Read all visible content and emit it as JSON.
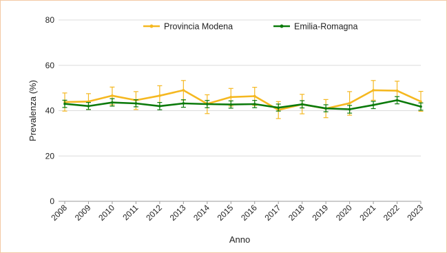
{
  "chart_data": {
    "type": "line",
    "title": "",
    "xlabel": "Anno",
    "ylabel": "Prevalenza (%)",
    "ylim": [
      0,
      80
    ],
    "yticks": [
      0,
      20,
      40,
      60,
      80
    ],
    "grid": "horizontal",
    "legend_position": "top",
    "x": [
      "2008",
      "2009",
      "2010",
      "2011",
      "2012",
      "2013",
      "2014",
      "2015",
      "2016",
      "2017",
      "2018",
      "2019",
      "2020",
      "2021",
      "2022",
      "2023"
    ],
    "series": [
      {
        "name": "Provincia Modena",
        "color": "#f5b820",
        "values": [
          43.8,
          44.0,
          46.6,
          44.6,
          46.6,
          49.0,
          43.0,
          46.0,
          46.4,
          40.3,
          42.8,
          40.9,
          43.3,
          49.0,
          48.8,
          44.0
        ],
        "error_low": [
          39.8,
          40.5,
          42.6,
          40.5,
          42.2,
          44.7,
          38.7,
          42.0,
          42.3,
          36.5,
          38.6,
          36.9,
          38.0,
          44.6,
          44.6,
          39.7
        ],
        "error_high": [
          47.8,
          47.5,
          50.4,
          48.4,
          51.0,
          53.3,
          47.0,
          49.8,
          50.3,
          44.0,
          47.2,
          44.9,
          48.4,
          53.3,
          53.0,
          48.5
        ]
      },
      {
        "name": "Emilia-Romagna",
        "color": "#0b7a0b",
        "values": [
          43.0,
          42.0,
          43.6,
          43.2,
          42.0,
          43.2,
          42.9,
          42.7,
          42.9,
          41.3,
          42.8,
          41.0,
          40.6,
          42.5,
          44.6,
          41.8
        ],
        "error_low": [
          41.4,
          40.5,
          42.0,
          41.7,
          40.4,
          41.5,
          41.3,
          41.1,
          41.3,
          39.8,
          41.2,
          39.5,
          38.9,
          40.9,
          43.0,
          40.2
        ],
        "error_high": [
          44.6,
          43.6,
          45.3,
          44.8,
          43.6,
          44.8,
          44.5,
          44.3,
          44.5,
          42.9,
          44.4,
          42.6,
          42.3,
          44.1,
          46.2,
          43.4
        ]
      }
    ]
  }
}
